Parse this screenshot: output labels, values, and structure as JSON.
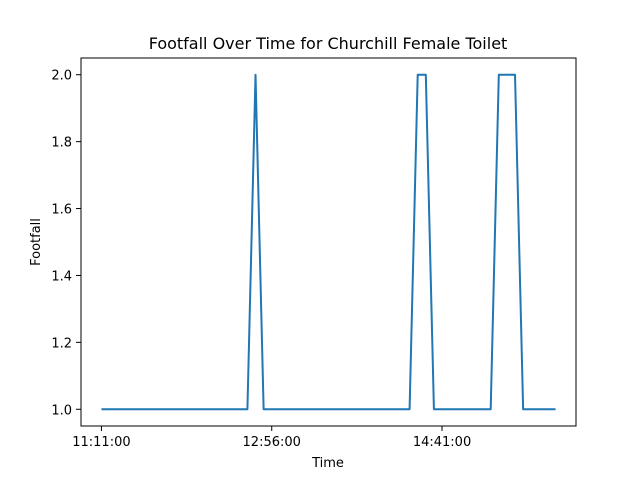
{
  "chart_data": {
    "type": "line",
    "title": "Footfall Over Time for Churchill Female Toilet",
    "xlabel": "Time",
    "ylabel": "Footfall",
    "x_tick_labels": [
      "11:11:00",
      "12:56:00",
      "14:41:00"
    ],
    "y_tick_labels": [
      "1.0",
      "1.2",
      "1.4",
      "1.6",
      "1.8",
      "2.0"
    ],
    "ylim": [
      0.95,
      2.05
    ],
    "grid": false,
    "line_color": "#1f77b4",
    "series": [
      {
        "x": [
          "11:11:00",
          "12:41:00",
          "12:46:00",
          "12:51:00",
          "14:21:00",
          "14:26:00",
          "14:31:00",
          "14:36:00",
          "15:11:00",
          "15:16:00",
          "15:21:00",
          "15:26:00",
          "15:31:00",
          "15:51:00"
        ],
        "values": [
          1,
          1,
          2,
          1,
          1,
          2,
          2,
          1,
          1,
          2,
          2,
          2,
          1,
          1
        ]
      }
    ]
  }
}
